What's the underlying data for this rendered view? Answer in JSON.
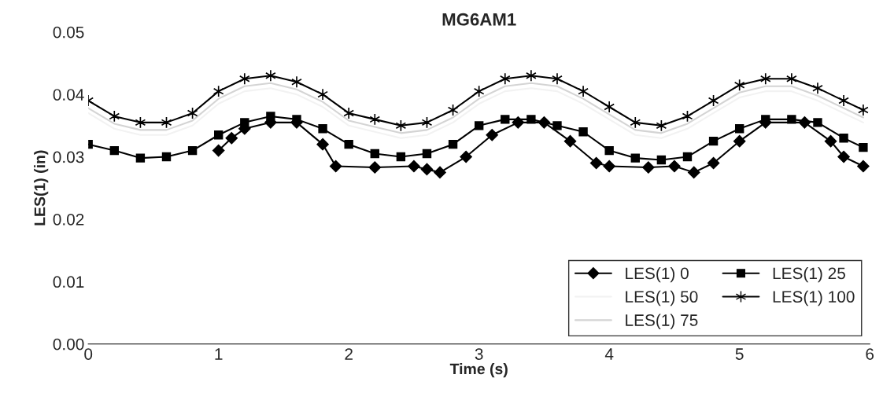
{
  "chart_data": {
    "type": "line",
    "title": "MG6AM1",
    "xlabel": "Time (s)",
    "ylabel": "LES(1) (in)",
    "xlim": [
      0,
      6
    ],
    "xticks": [
      0,
      1,
      2,
      3,
      4,
      5,
      6
    ],
    "ylim": [
      0,
      0.05
    ],
    "yticks": [
      {
        "value": 0,
        "label": "0.00"
      },
      {
        "value": 0.01,
        "label": "0.01"
      },
      {
        "value": 0.02,
        "label": "0.02"
      },
      {
        "value": 0.03,
        "label": "0.03"
      },
      {
        "value": 0.04,
        "label": "0.04"
      },
      {
        "value": 0.05,
        "label": "0.05"
      }
    ],
    "grid": false,
    "legend": "bottom right",
    "series": [
      {
        "name": "LES(1) 0",
        "color": "#000000",
        "marker": "diamond",
        "x": [
          1.0,
          1.1,
          1.2,
          1.4,
          1.6,
          1.8,
          1.9,
          2.2,
          2.5,
          2.6,
          2.7,
          2.9,
          3.1,
          3.3,
          3.5,
          3.7,
          3.9,
          4.0,
          4.3,
          4.5,
          4.65,
          4.8,
          5.0,
          5.2,
          5.5,
          5.7,
          5.8,
          5.95
        ],
        "values": [
          0.031,
          0.033,
          0.0345,
          0.0355,
          0.0355,
          0.032,
          0.0285,
          0.0283,
          0.0285,
          0.028,
          0.0275,
          0.03,
          0.0335,
          0.0355,
          0.0355,
          0.0325,
          0.029,
          0.0285,
          0.0283,
          0.0285,
          0.0275,
          0.029,
          0.0325,
          0.0355,
          0.0355,
          0.0325,
          0.03,
          0.0285
        ]
      },
      {
        "name": "LES(1) 25",
        "color": "#000000",
        "marker": "square",
        "x": [
          0,
          0.2,
          0.4,
          0.6,
          0.8,
          1.0,
          1.2,
          1.4,
          1.6,
          1.8,
          2.0,
          2.2,
          2.4,
          2.6,
          2.8,
          3.0,
          3.2,
          3.4,
          3.6,
          3.8,
          4.0,
          4.2,
          4.4,
          4.6,
          4.8,
          5.0,
          5.2,
          5.4,
          5.6,
          5.8,
          5.95
        ],
        "values": [
          0.032,
          0.031,
          0.0298,
          0.03,
          0.031,
          0.0335,
          0.0355,
          0.0365,
          0.036,
          0.0345,
          0.032,
          0.0305,
          0.03,
          0.0305,
          0.032,
          0.035,
          0.036,
          0.036,
          0.035,
          0.034,
          0.031,
          0.0298,
          0.0295,
          0.03,
          0.0325,
          0.0345,
          0.036,
          0.036,
          0.0355,
          0.033,
          0.0315
        ]
      },
      {
        "name": "LES(1) 50",
        "color": "#f2f2f2",
        "marker": "none",
        "x": [
          0,
          0.2,
          0.4,
          0.6,
          0.8,
          1.0,
          1.2,
          1.4,
          1.6,
          1.8,
          2.0,
          2.2,
          2.4,
          2.6,
          2.8,
          3.0,
          3.2,
          3.4,
          3.6,
          3.8,
          4.0,
          4.2,
          4.4,
          4.6,
          4.8,
          5.0,
          5.2,
          5.4,
          5.6,
          5.8,
          5.95
        ],
        "values": [
          0.037,
          0.0345,
          0.0335,
          0.0335,
          0.035,
          0.0385,
          0.0405,
          0.041,
          0.04,
          0.038,
          0.035,
          0.034,
          0.033,
          0.0335,
          0.0355,
          0.0385,
          0.0405,
          0.041,
          0.0405,
          0.0385,
          0.036,
          0.0335,
          0.033,
          0.0345,
          0.037,
          0.0395,
          0.0405,
          0.0405,
          0.039,
          0.037,
          0.0355
        ]
      },
      {
        "name": "LES(1) 100",
        "color": "#000000",
        "marker": "cross",
        "x": [
          0,
          0.2,
          0.4,
          0.6,
          0.8,
          1.0,
          1.2,
          1.4,
          1.6,
          1.8,
          2.0,
          2.2,
          2.4,
          2.6,
          2.8,
          3.0,
          3.2,
          3.4,
          3.6,
          3.8,
          4.0,
          4.2,
          4.4,
          4.6,
          4.8,
          5.0,
          5.2,
          5.4,
          5.6,
          5.8,
          5.95
        ],
        "values": [
          0.039,
          0.0365,
          0.0355,
          0.0355,
          0.037,
          0.0405,
          0.0425,
          0.043,
          0.042,
          0.04,
          0.037,
          0.036,
          0.035,
          0.0355,
          0.0375,
          0.0405,
          0.0425,
          0.043,
          0.0425,
          0.0405,
          0.038,
          0.0355,
          0.035,
          0.0365,
          0.039,
          0.0415,
          0.0425,
          0.0425,
          0.041,
          0.039,
          0.0375
        ]
      },
      {
        "name": "LES(1) 75",
        "color": "#d4d4d4",
        "marker": "none",
        "x": [
          0,
          0.2,
          0.4,
          0.6,
          0.8,
          1.0,
          1.2,
          1.4,
          1.6,
          1.8,
          2.0,
          2.2,
          2.4,
          2.6,
          2.8,
          3.0,
          3.2,
          3.4,
          3.6,
          3.8,
          4.0,
          4.2,
          4.4,
          4.6,
          4.8,
          5.0,
          5.2,
          5.4,
          5.6,
          5.8,
          5.95
        ],
        "values": [
          0.0378,
          0.0353,
          0.0343,
          0.0343,
          0.0358,
          0.0393,
          0.0413,
          0.0418,
          0.0408,
          0.0388,
          0.0358,
          0.0348,
          0.0338,
          0.0343,
          0.0363,
          0.0393,
          0.0413,
          0.0418,
          0.0413,
          0.0393,
          0.0368,
          0.0343,
          0.0338,
          0.0353,
          0.0378,
          0.0403,
          0.0413,
          0.0413,
          0.0398,
          0.0378,
          0.0363
        ]
      }
    ]
  }
}
